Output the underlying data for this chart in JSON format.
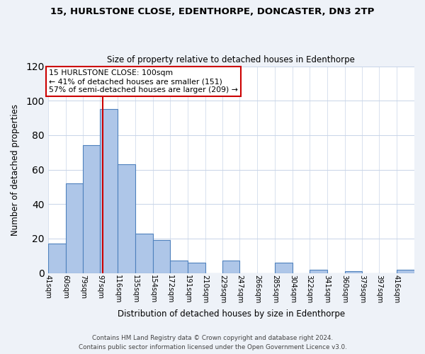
{
  "title1": "15, HURLSTONE CLOSE, EDENTHORPE, DONCASTER, DN3 2TP",
  "title2": "Size of property relative to detached houses in Edenthorpe",
  "xlabel": "Distribution of detached houses by size in Edenthorpe",
  "ylabel": "Number of detached properties",
  "bin_labels": [
    "41sqm",
    "60sqm",
    "79sqm",
    "97sqm",
    "116sqm",
    "135sqm",
    "154sqm",
    "172sqm",
    "191sqm",
    "210sqm",
    "229sqm",
    "247sqm",
    "266sqm",
    "285sqm",
    "304sqm",
    "322sqm",
    "341sqm",
    "360sqm",
    "379sqm",
    "397sqm",
    "416sqm"
  ],
  "bin_edges": [
    41,
    60,
    79,
    97,
    116,
    135,
    154,
    172,
    191,
    210,
    229,
    247,
    266,
    285,
    304,
    322,
    341,
    360,
    379,
    397,
    416
  ],
  "bar_heights": [
    17,
    52,
    74,
    95,
    63,
    23,
    19,
    7,
    6,
    0,
    7,
    0,
    0,
    6,
    0,
    2,
    0,
    1,
    0,
    0,
    2
  ],
  "bar_color": "#aec6e8",
  "bar_edge_color": "#4f81bd",
  "vline_x": 100,
  "vline_color": "#cc0000",
  "annotation_title": "15 HURLSTONE CLOSE: 100sqm",
  "annotation_line1": "← 41% of detached houses are smaller (151)",
  "annotation_line2": "57% of semi-detached houses are larger (209) →",
  "annotation_box_color": "#ffffff",
  "annotation_box_edge": "#cc0000",
  "ylim": [
    0,
    120
  ],
  "yticks": [
    0,
    20,
    40,
    60,
    80,
    100,
    120
  ],
  "footer1": "Contains HM Land Registry data © Crown copyright and database right 2024.",
  "footer2": "Contains public sector information licensed under the Open Government Licence v3.0.",
  "bg_color": "#eef2f8",
  "plot_bg_color": "#ffffff"
}
